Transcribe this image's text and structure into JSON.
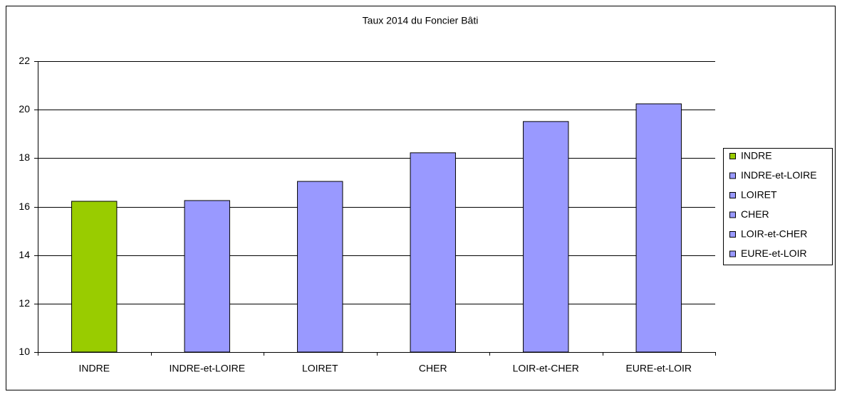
{
  "chart_data": {
    "type": "bar",
    "title": "Taux 2014 du Foncier Bâti",
    "categories": [
      "INDRE",
      "INDRE-et-LOIRE",
      "LOIRET",
      "CHER",
      "LOIR-et-CHER",
      "EURE-et-LOIR"
    ],
    "values": [
      16.22,
      16.25,
      17.04,
      18.22,
      19.51,
      20.24
    ],
    "colors": [
      "#99cc00",
      "#9999ff",
      "#9999ff",
      "#9999ff",
      "#9999ff",
      "#9999ff"
    ],
    "ylim": [
      10,
      22
    ],
    "yticks": [
      10,
      12,
      14,
      16,
      18,
      20,
      22
    ],
    "grid": true,
    "legend": "right"
  }
}
